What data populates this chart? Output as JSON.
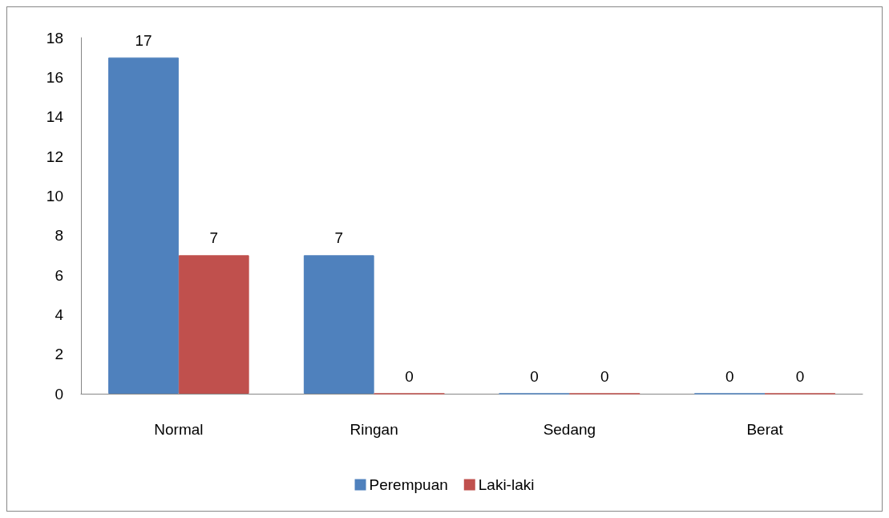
{
  "chart_data": {
    "type": "bar",
    "categories": [
      "Normal",
      "Ringan",
      "Sedang",
      "Berat"
    ],
    "series": [
      {
        "name": "Perempuan",
        "color": "#4f81bd",
        "values": [
          17,
          7,
          0,
          0
        ]
      },
      {
        "name": "Laki-laki",
        "color": "#c0504d",
        "values": [
          7,
          0,
          0,
          0
        ]
      }
    ],
    "ylim": [
      0,
      18
    ],
    "yticks": [
      0,
      2,
      4,
      6,
      8,
      10,
      12,
      14,
      16,
      18
    ],
    "grid": false,
    "legend": "bottom",
    "data_labels": true
  }
}
